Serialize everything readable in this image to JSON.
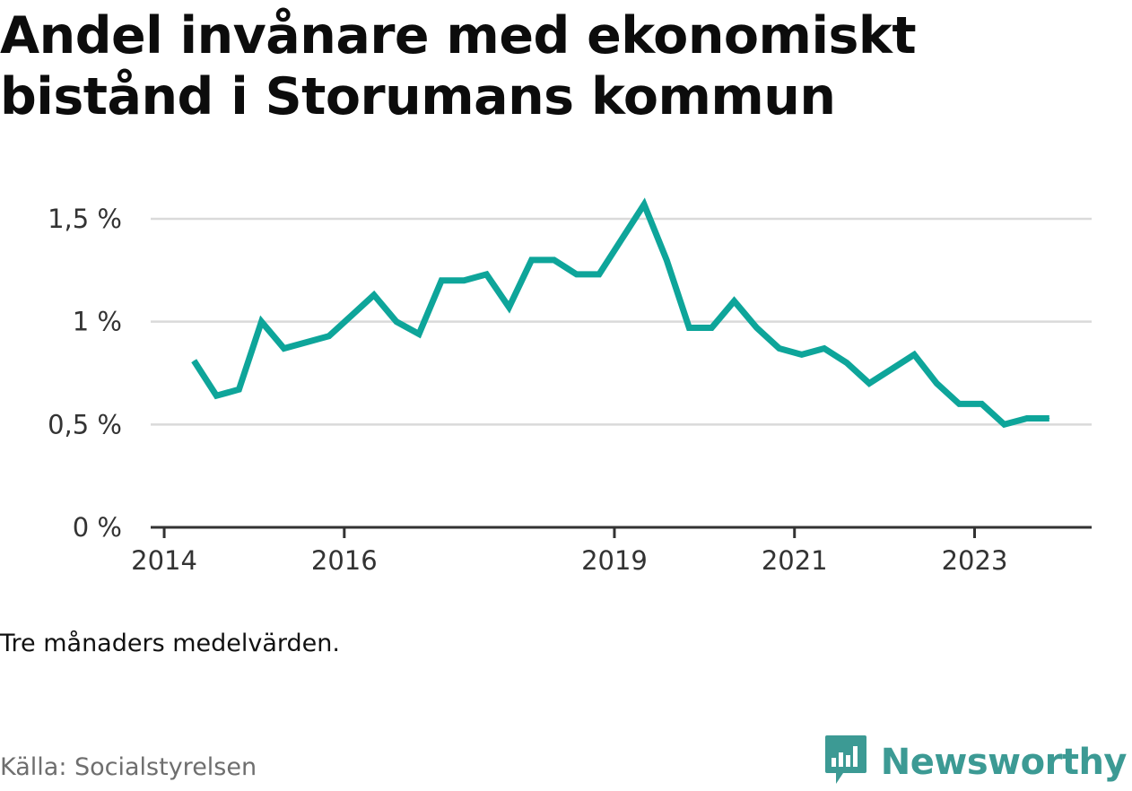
{
  "title": "Andel invånare med ekonomiskt bistånd i Storumans kommun",
  "note": "Tre månaders medelvärden.",
  "source": "Källa: Socialstyrelsen",
  "brand": {
    "name": "Newsworthy",
    "logo_icon": "newsworthy-logo-icon",
    "color": "#3c9a94"
  },
  "chart_data": {
    "type": "line",
    "title": "Andel invånare med ekonomiskt bistånd i Storumans kommun",
    "xlabel": "",
    "ylabel": "",
    "ylim": [
      0,
      1.5
    ],
    "yticks": [
      {
        "value": 0,
        "label": "0 %"
      },
      {
        "value": 0.5,
        "label": "0,5 %"
      },
      {
        "value": 1,
        "label": "1 %"
      },
      {
        "value": 1.5,
        "label": "1,5 %"
      }
    ],
    "xticks": [
      {
        "value": 2014,
        "label": "2014"
      },
      {
        "value": 2016,
        "label": "2016"
      },
      {
        "value": 2019,
        "label": "2019"
      },
      {
        "value": 2021,
        "label": "2021"
      },
      {
        "value": 2023,
        "label": "2023"
      }
    ],
    "xlim": [
      2013.85,
      2024.3
    ],
    "grid": true,
    "line_color": "#0ea59a",
    "series": [
      {
        "name": "",
        "x": [
          2014.33,
          2014.58,
          2014.83,
          2015.08,
          2015.33,
          2015.58,
          2015.83,
          2016.08,
          2016.33,
          2016.58,
          2016.83,
          2017.08,
          2017.33,
          2017.58,
          2017.83,
          2018.08,
          2018.33,
          2018.58,
          2018.83,
          2019.08,
          2019.33,
          2019.58,
          2019.83,
          2020.08,
          2020.33,
          2020.58,
          2020.83,
          2021.08,
          2021.33,
          2021.58,
          2021.83,
          2022.08,
          2022.33,
          2022.58,
          2022.83,
          2023.08,
          2023.33,
          2023.58,
          2023.83
        ],
        "y": [
          0.81,
          0.64,
          0.67,
          1.0,
          0.87,
          0.9,
          0.93,
          1.03,
          1.13,
          1.0,
          0.94,
          1.2,
          1.2,
          1.23,
          1.07,
          1.3,
          1.3,
          1.23,
          1.23,
          1.4,
          1.57,
          1.3,
          0.97,
          0.97,
          1.1,
          0.97,
          0.87,
          0.84,
          0.87,
          0.8,
          0.7,
          0.77,
          0.84,
          0.7,
          0.6,
          0.6,
          0.5,
          0.53,
          0.53
        ]
      }
    ]
  }
}
